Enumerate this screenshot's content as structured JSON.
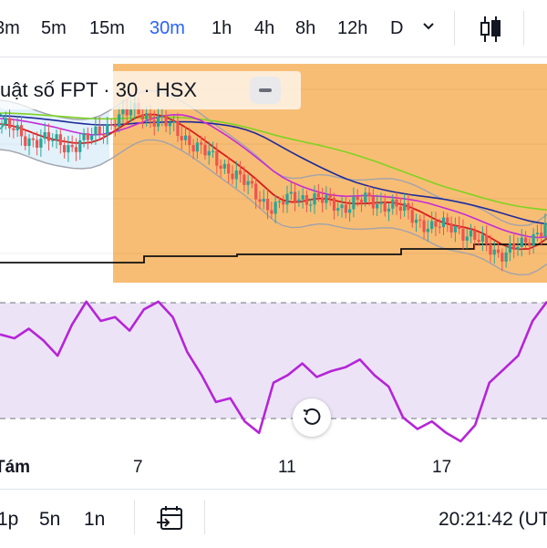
{
  "toolbar": {
    "timeframes": [
      "3m",
      "5m",
      "15m",
      "30m",
      "1h",
      "4h",
      "8h",
      "12h",
      "D"
    ],
    "active": "30m",
    "icons": [
      "chevron-down-icon",
      "candlestick-icon"
    ]
  },
  "legend": {
    "title": "uật số FPT · 30 · HSX"
  },
  "bottom": {
    "ranges": [
      "1p",
      "5n",
      "1n"
    ],
    "clock": "20:21:42 (UT"
  },
  "colors": {
    "highlight": "#f8bd74",
    "up": "#26a69a",
    "down": "#ef5350",
    "rsi_line": "#b624d8",
    "rsi_band": "#ece4f6",
    "ma_red": "#d81b1b",
    "ma_purple": "#c42bd6",
    "ma_navy": "#1e2a9a",
    "ma_green": "#7ed321",
    "bollinger": "#a0a3ac",
    "baseline": "#111111",
    "accent": "#2962ff"
  },
  "chart_data": [
    {
      "type": "candlestick",
      "title": "uật số FPT · 30 · HSX",
      "x_ticks": [
        "Tám",
        "7",
        "11",
        "17"
      ],
      "series": [
        {
          "values": [
            58,
            53,
            52,
            50,
            53,
            60,
            63,
            59,
            54,
            47,
            42,
            34,
            27,
            32,
            30,
            28,
            30,
            29,
            25,
            20,
            21,
            15,
            11,
            13,
            22
          ]
        }
      ]
    },
    {
      "type": "line",
      "x_ticks": [
        "Tám",
        "7",
        "11",
        "17"
      ],
      "series": [
        {
          "values": [
            73,
            71,
            76,
            70,
            62,
            78,
            90,
            80,
            82,
            75,
            86,
            90,
            82,
            64,
            52,
            38,
            40,
            28,
            22,
            48,
            52,
            58,
            51,
            54,
            56,
            60,
            52,
            46,
            30,
            24,
            28,
            22,
            17,
            26,
            48,
            55,
            62,
            80,
            90
          ]
        }
      ]
    }
  ]
}
